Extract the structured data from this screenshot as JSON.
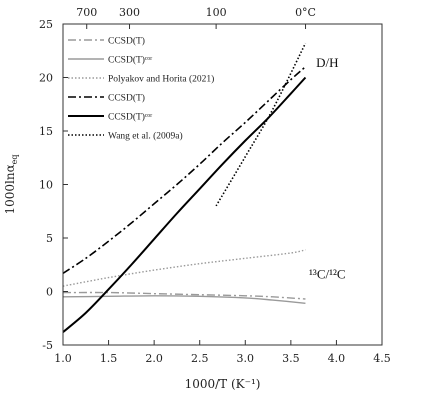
{
  "chart_data": {
    "type": "line",
    "xlabel": "1000/T (K⁻¹)",
    "ylabel": "1000lnα",
    "ylabel_sub": "eq",
    "xlim": [
      1.0,
      4.5
    ],
    "ylim": [
      -5,
      25
    ],
    "x_ticks": [
      1.0,
      1.5,
      2.0,
      2.5,
      3.0,
      3.5,
      4.0,
      4.5
    ],
    "x_tick_labels": [
      "1.0",
      "1.5",
      "2.0",
      "2.5",
      "3.0",
      "3.5",
      "4.0",
      "4.5"
    ],
    "y_ticks": [
      -5,
      0,
      5,
      10,
      15,
      20,
      25
    ],
    "y_tick_labels": [
      "-5",
      "0",
      "5",
      "10",
      "15",
      "20",
      "25"
    ],
    "top_axis": {
      "ticks_x": [
        1.2602,
        1.7298,
        2.6799,
        3.661
      ],
      "labels": [
        "700",
        "300",
        "100",
        "0°C"
      ]
    },
    "annotations": [
      {
        "text": "D/H",
        "x": 3.9,
        "y": 21.0
      },
      {
        "text": "¹³C/¹²C",
        "x": 3.9,
        "y": 1.2
      }
    ],
    "legend": {
      "position": "top-left",
      "entries": [
        {
          "label": "CCSD(T)",
          "style": "dashdot",
          "color": "#9a9a9a"
        },
        {
          "label": "CCSD(T)ᶜᵒʳ",
          "style": "solid",
          "color": "#9a9a9a"
        },
        {
          "label": "Polyakov and Horita (2021)",
          "style": "dotted",
          "color": "#9a9a9a"
        },
        {
          "label": "CCSD(T)",
          "style": "dashdot",
          "color": "#000000"
        },
        {
          "label": "CCSD(T)ᶜᵒʳ",
          "style": "solid",
          "color": "#000000"
        },
        {
          "label": "Wang et al. (2009a)",
          "style": "dotted",
          "color": "#000000"
        }
      ]
    },
    "series": [
      {
        "name": "CCSD(T)",
        "group": "carbon",
        "style": "dashdot",
        "color": "#9a9a9a",
        "x": [
          1.0,
          1.5,
          2.0,
          2.5,
          3.0,
          3.3,
          3.66
        ],
        "y": [
          -0.1,
          -0.1,
          -0.2,
          -0.3,
          -0.4,
          -0.5,
          -0.7
        ]
      },
      {
        "name": "CCSD(T)ᶜᵒʳ",
        "group": "carbon",
        "style": "solid",
        "color": "#9a9a9a",
        "x": [
          1.0,
          1.5,
          2.0,
          2.5,
          3.0,
          3.3,
          3.66
        ],
        "y": [
          -0.5,
          -0.45,
          -0.4,
          -0.45,
          -0.6,
          -0.8,
          -1.1
        ]
      },
      {
        "name": "Polyakov and Horita (2021)",
        "group": "carbon",
        "style": "dotted",
        "color": "#9a9a9a",
        "x": [
          1.0,
          1.5,
          2.0,
          2.5,
          3.0,
          3.5,
          3.66
        ],
        "y": [
          0.5,
          1.3,
          2.0,
          2.6,
          3.1,
          3.6,
          3.9
        ]
      },
      {
        "name": "CCSD(T)",
        "group": "hydrogen",
        "style": "dashdot",
        "color": "#000000",
        "x": [
          1.0,
          1.25,
          1.5,
          1.75,
          2.0,
          2.25,
          2.5,
          2.75,
          3.0,
          3.25,
          3.5,
          3.66
        ],
        "y": [
          1.7,
          3.1,
          4.7,
          6.4,
          8.2,
          10.0,
          11.9,
          13.9,
          15.8,
          17.8,
          19.8,
          21.0
        ]
      },
      {
        "name": "CCSD(T)ᶜᵒʳ",
        "group": "hydrogen",
        "style": "solid",
        "color": "#000000",
        "x": [
          1.0,
          1.25,
          1.5,
          1.75,
          2.0,
          2.25,
          2.5,
          2.75,
          3.0,
          3.25,
          3.5,
          3.66
        ],
        "y": [
          -3.8,
          -2.0,
          0.2,
          2.5,
          4.9,
          7.3,
          9.6,
          11.9,
          14.1,
          16.2,
          18.5,
          20.0
        ]
      },
      {
        "name": "Wang et al. (2009a)",
        "group": "hydrogen",
        "style": "dotted",
        "color": "#000000",
        "x": [
          2.68,
          3.0,
          3.3,
          3.66
        ],
        "y": [
          8.0,
          12.6,
          17.0,
          23.2
        ]
      }
    ]
  }
}
